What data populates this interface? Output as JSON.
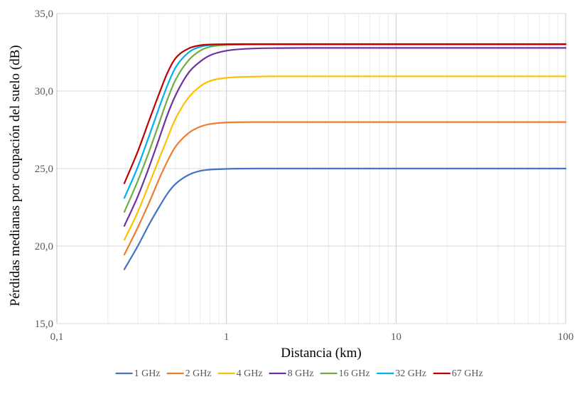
{
  "chart_data": {
    "type": "line",
    "xscale": "log",
    "xlim": [
      0.1,
      100
    ],
    "ylim": [
      15,
      35
    ],
    "xlabel": "Distancia (km)",
    "ylabel": "Pérdidas medianas por ocupación del suelo (dB)",
    "x_ticks": [
      0.1,
      1,
      10,
      100
    ],
    "x_tick_labels": [
      "0,1",
      "1",
      "10",
      "100"
    ],
    "y_ticks": [
      15,
      20,
      25,
      30,
      35
    ],
    "y_tick_labels": [
      "15,0",
      "20,0",
      "25,0",
      "30,0",
      "35,0"
    ],
    "grid": true,
    "legend": "bottom",
    "x": [
      0.25,
      0.3,
      0.35,
      0.4,
      0.45,
      0.5,
      0.6,
      0.7,
      0.8,
      1,
      1.5,
      2,
      3,
      5,
      10,
      20,
      50,
      100
    ],
    "series": [
      {
        "name": "1 GHz",
        "color": "#4472C4",
        "values": [
          18.5,
          20.0,
          21.4,
          22.5,
          23.4,
          24.0,
          24.6,
          24.85,
          24.93,
          24.98,
          25.0,
          25.0,
          25.0,
          25.0,
          25.0,
          25.0,
          25.0,
          25.0
        ]
      },
      {
        "name": "2 GHz",
        "color": "#ED7D31",
        "values": [
          19.45,
          21.2,
          22.8,
          24.3,
          25.5,
          26.4,
          27.3,
          27.7,
          27.87,
          27.97,
          28.0,
          28.0,
          28.0,
          28.0,
          28.0,
          28.0,
          28.0,
          28.0
        ]
      },
      {
        "name": "4 GHz",
        "color": "#FFC000",
        "values": [
          20.4,
          22.2,
          24.0,
          25.6,
          27.0,
          28.2,
          29.6,
          30.3,
          30.65,
          30.85,
          30.93,
          30.95,
          30.95,
          30.95,
          30.95,
          30.95,
          30.95,
          30.95
        ]
      },
      {
        "name": "8 GHz",
        "color": "#7030A0",
        "values": [
          21.3,
          23.2,
          25.1,
          26.9,
          28.5,
          29.7,
          31.2,
          31.9,
          32.3,
          32.6,
          32.75,
          32.77,
          32.78,
          32.78,
          32.78,
          32.78,
          32.78,
          32.78
        ]
      },
      {
        "name": "16 GHz",
        "color": "#70AD47",
        "values": [
          22.2,
          24.2,
          26.1,
          27.9,
          29.5,
          30.7,
          32.0,
          32.6,
          32.85,
          32.97,
          33.0,
          33.0,
          33.0,
          33.0,
          33.0,
          33.0,
          33.0,
          33.0
        ]
      },
      {
        "name": "32 GHz",
        "color": "#00B0F0",
        "values": [
          23.1,
          25.1,
          27.1,
          28.9,
          30.4,
          31.5,
          32.5,
          32.85,
          32.96,
          33.0,
          33.02,
          33.02,
          33.02,
          33.02,
          33.02,
          33.02,
          33.02,
          33.02
        ]
      },
      {
        "name": "67 GHz",
        "color": "#C00000",
        "values": [
          24.05,
          26.1,
          28.1,
          29.8,
          31.2,
          32.1,
          32.75,
          32.95,
          33.0,
          33.02,
          33.03,
          33.03,
          33.03,
          33.03,
          33.03,
          33.03,
          33.03,
          33.03
        ]
      }
    ]
  }
}
